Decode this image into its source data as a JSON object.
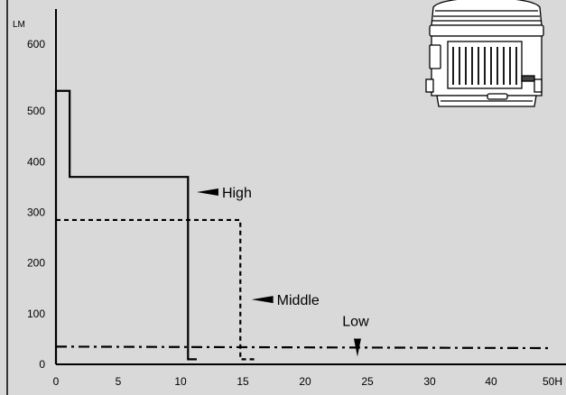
{
  "chart_data": {
    "type": "line",
    "ylabel": "LM",
    "xlabel": "",
    "x_unit_partial": "50H",
    "xlim": [
      0,
      50
    ],
    "ylim": [
      0,
      600
    ],
    "xticks": [
      "0",
      "5",
      "10",
      "15",
      "20",
      "25",
      "30",
      "40",
      "50H"
    ],
    "xtick_values": [
      0,
      5,
      10,
      15,
      20,
      25,
      30,
      40,
      50
    ],
    "yticks": [
      "0",
      "100",
      "200",
      "300",
      "400",
      "500",
      "600"
    ],
    "ytick_values": [
      0,
      100,
      200,
      300,
      400,
      500,
      600
    ],
    "grid": false,
    "legend": "none",
    "series": [
      {
        "name": "High",
        "style": "solid",
        "x": [
          0,
          0,
          1.1,
          1.1,
          10.6,
          10.6,
          11.3
        ],
        "y": [
          0,
          540,
          540,
          370,
          370,
          10,
          10
        ]
      },
      {
        "name": "Middle",
        "style": "dashed",
        "x": [
          0,
          14.8,
          14.8,
          16
        ],
        "y": [
          285,
          285,
          10,
          10
        ]
      },
      {
        "name": "Low",
        "style": "dash-dot",
        "x": [
          0,
          50
        ],
        "y": [
          35,
          32
        ]
      }
    ],
    "annotations": [
      {
        "text": "High",
        "x": 11.3,
        "y": 340,
        "marker": "arrow-left"
      },
      {
        "text": "Middle",
        "x": 15.7,
        "y": 128,
        "marker": "arrow-left"
      },
      {
        "text": "Low",
        "x": 24.2,
        "y": 90,
        "marker": "arrow-down"
      }
    ]
  },
  "product_image": {
    "icon": "luminaire-product-icon"
  }
}
